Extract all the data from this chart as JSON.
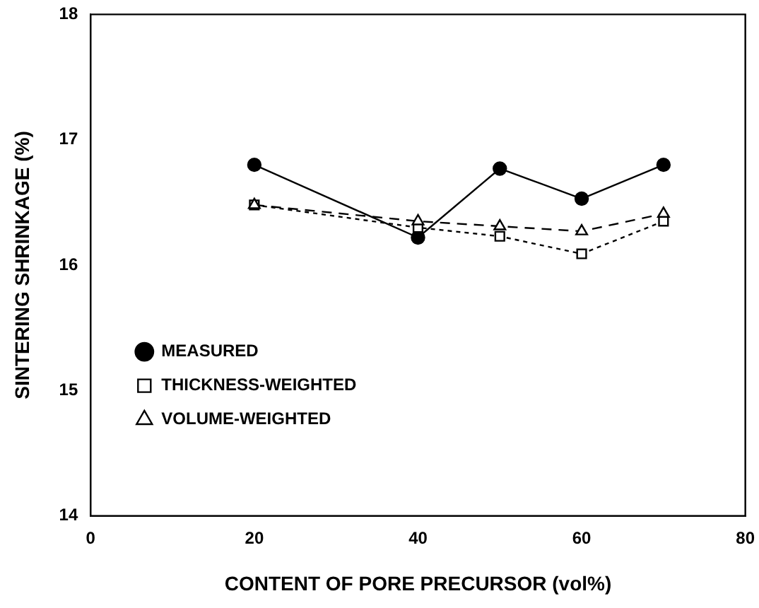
{
  "chart_data": {
    "type": "line",
    "xlabel": "CONTENT OF PORE PRECURSOR (vol%)",
    "ylabel": "SINTERING SHRINKAGE (%)",
    "x": [
      20,
      40,
      50,
      60,
      70
    ],
    "series": [
      {
        "name": "MEASURED",
        "color": "#000000",
        "marker": "circle",
        "line_style": "solid",
        "values": [
          16.8,
          16.22,
          16.77,
          16.53,
          16.8
        ]
      },
      {
        "name": "THICKNESS-WEIGHTED",
        "color": "#000000",
        "marker": "square",
        "line_style": "dotted",
        "values": [
          16.48,
          16.3,
          16.23,
          16.09,
          16.35
        ]
      },
      {
        "name": "VOLUME-WEIGHTED",
        "color": "#000000",
        "marker": "triangle",
        "line_style": "dashed",
        "values": [
          16.48,
          16.35,
          16.31,
          16.27,
          16.41
        ]
      }
    ],
    "xlim": [
      0,
      80
    ],
    "xticks": [
      0,
      20,
      40,
      60,
      80
    ],
    "ylim": [
      14,
      18
    ],
    "yticks": [
      14,
      15,
      16,
      17,
      18
    ],
    "grid": false,
    "legend": "bottom left"
  }
}
